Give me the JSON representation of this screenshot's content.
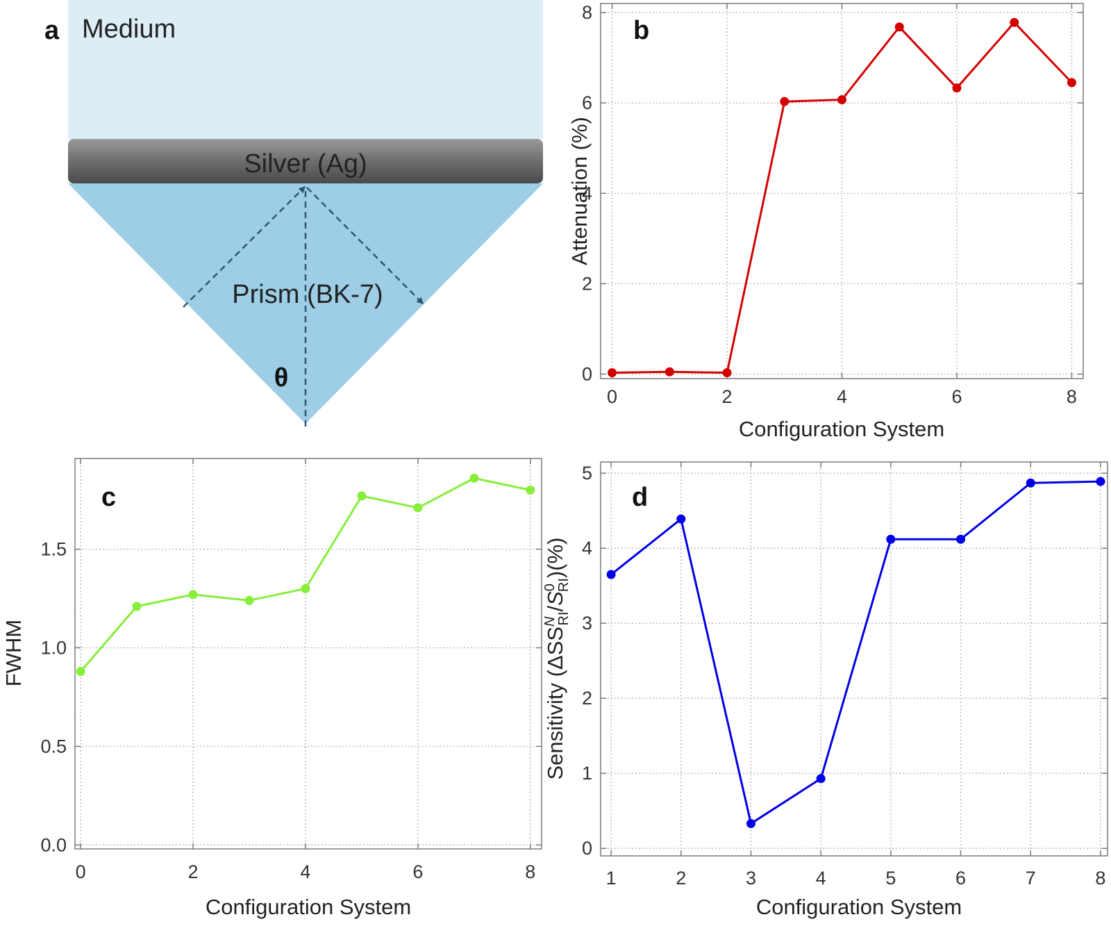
{
  "diagram": {
    "panel_label": "a",
    "medium_label": "Medium",
    "silver_label": "Silver (Ag)",
    "prism_label": "Prism (BK-7)",
    "angle_label": "θ",
    "colors": {
      "medium": "#dcedf6",
      "prism": "#9ecde6",
      "silver": "#6b6b6b",
      "arrows": "#2f5670"
    }
  },
  "chart_data": [
    {
      "panel_label": "b",
      "type": "line",
      "xlabel": "Configuration System",
      "ylabel": "Attenuation (%)",
      "x": [
        0,
        1,
        2,
        3,
        4,
        5,
        6,
        7,
        8
      ],
      "values": [
        0.03,
        0.05,
        0.03,
        6.03,
        6.07,
        7.68,
        6.33,
        7.78,
        6.45
      ],
      "xlim": [
        -0.2,
        8.2
      ],
      "ylim": [
        -0.1,
        8.2
      ],
      "xticks": [
        0,
        2,
        4,
        6,
        8
      ],
      "yticks": [
        0,
        2,
        4,
        6,
        8
      ],
      "ytick_labels": [
        "0",
        "2",
        "4",
        "6",
        "8"
      ],
      "color": "#d40000",
      "grid": true
    },
    {
      "panel_label": "c",
      "type": "line",
      "xlabel": "Configuration System",
      "ylabel": "FWHM",
      "x": [
        0,
        1,
        2,
        3,
        4,
        5,
        6,
        7,
        8
      ],
      "values": [
        0.88,
        1.21,
        1.27,
        1.24,
        1.3,
        1.77,
        1.71,
        1.86,
        1.8
      ],
      "xlim": [
        -0.1,
        8.2
      ],
      "ylim": [
        -0.02,
        1.96
      ],
      "xticks": [
        0,
        2,
        4,
        6,
        8
      ],
      "yticks": [
        0.0,
        0.5,
        1.0,
        1.5
      ],
      "ytick_labels": [
        "0.0",
        "0.5",
        "1.0",
        "1.5"
      ],
      "color": "#86ef3a",
      "grid": true
    },
    {
      "panel_label": "d",
      "type": "line",
      "xlabel": "Configuration System",
      "ylabel": "Sensitivity (ΔS^N_RI/S^0_RI)(%)",
      "x": [
        1,
        2,
        3,
        4,
        5,
        6,
        7,
        8
      ],
      "values": [
        3.65,
        4.39,
        0.33,
        0.93,
        4.12,
        4.12,
        4.87,
        4.89
      ],
      "xlim": [
        0.85,
        8.1
      ],
      "ylim": [
        -0.1,
        5.15
      ],
      "xticks": [
        1,
        2,
        3,
        4,
        5,
        6,
        7,
        8
      ],
      "yticks": [
        0,
        1,
        2,
        3,
        4,
        5
      ],
      "ytick_labels": [
        "0",
        "1",
        "2",
        "3",
        "4",
        "5"
      ],
      "color": "#0000e6",
      "grid": true
    }
  ]
}
